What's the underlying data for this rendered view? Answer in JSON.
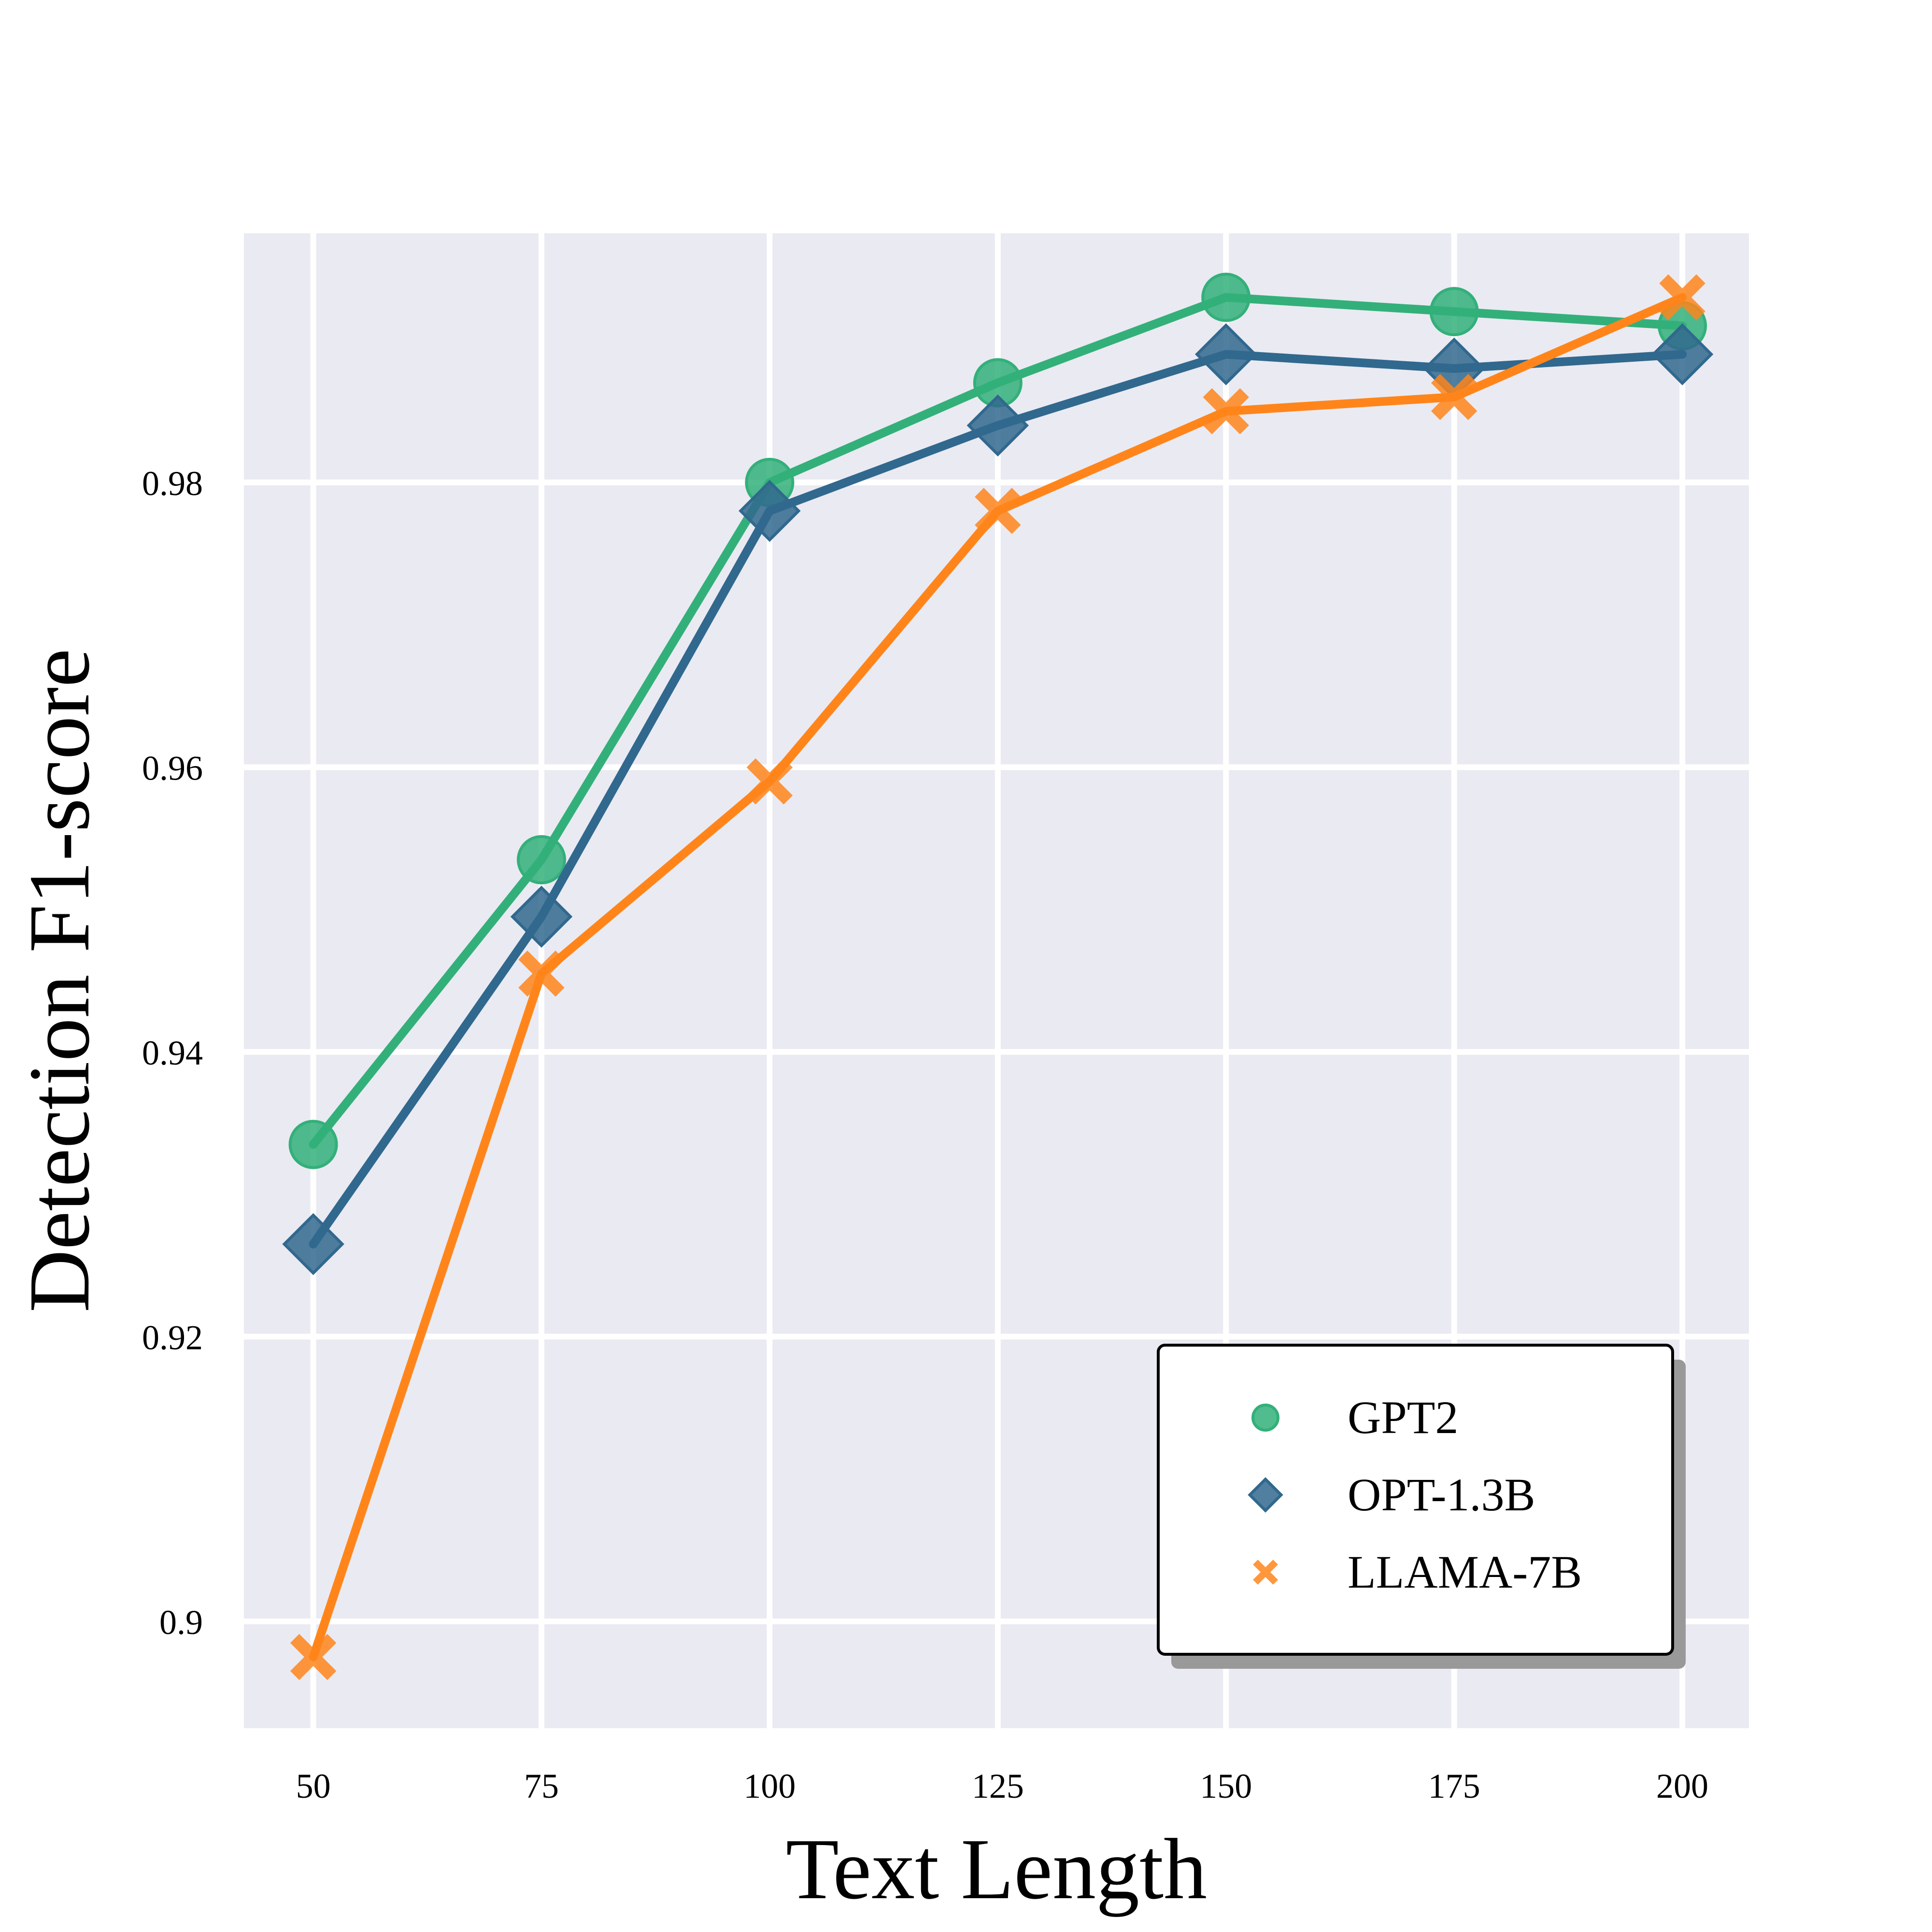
{
  "chart_data": {
    "type": "line",
    "xlabel": "Text Length",
    "ylabel": "Detection F1-score",
    "x": [
      50,
      75,
      100,
      125,
      150,
      175,
      200
    ],
    "xticks": [
      50,
      75,
      100,
      125,
      150,
      175,
      200
    ],
    "xtick_labels": [
      "50",
      "75",
      "100",
      "125",
      "150",
      "175",
      "200"
    ],
    "xlim": [
      42.4,
      207.3
    ],
    "yticks": [
      0.9,
      0.92,
      0.94,
      0.96,
      0.98
    ],
    "ytick_labels": [
      "0.9",
      "0.92",
      "0.94",
      "0.96",
      "0.98"
    ],
    "ylim": [
      0.8925,
      0.9975
    ],
    "grid": true,
    "background_color": "#eaeaf2",
    "legend_position": "lower-right",
    "series": [
      {
        "name": "GPT2",
        "marker": "circle",
        "color": "#33b07a",
        "values": [
          0.9335,
          0.9535,
          0.98,
          0.987,
          0.993,
          0.992,
          0.991
        ]
      },
      {
        "name": "OPT-1.3B",
        "marker": "diamond",
        "color": "#31688e",
        "values": [
          0.9265,
          0.9495,
          0.978,
          0.984,
          0.989,
          0.988,
          0.989
        ]
      },
      {
        "name": "LLAMA-7B",
        "marker": "x",
        "color": "#ff851b",
        "values": [
          0.8975,
          0.9455,
          0.959,
          0.978,
          0.985,
          0.986,
          0.993
        ]
      }
    ]
  }
}
